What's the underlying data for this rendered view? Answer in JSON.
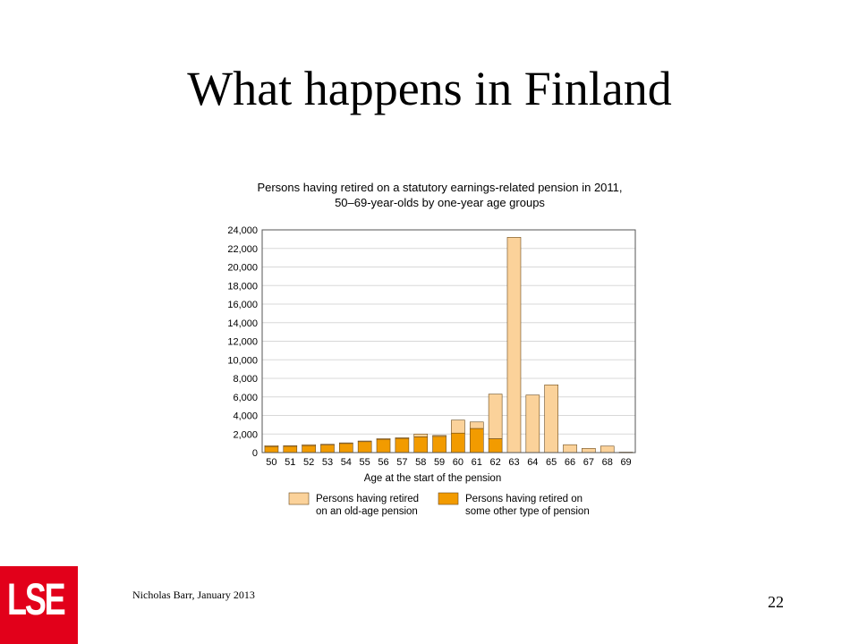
{
  "slide": {
    "title": "What happens in Finland",
    "footer": "Nicholas Barr, January 2013",
    "page_number": "22",
    "logo_text": "LSE"
  },
  "colors": {
    "old_age": "#fbd29a",
    "other": "#f29b00",
    "logo_bg": "#e2001a",
    "grid": "#d8d8d8"
  },
  "chart_data": {
    "type": "bar",
    "stacked": true,
    "title_lines": [
      "Persons having retired on a statutory earnings-related pension in 2011,",
      "50–69-year-olds by one-year age groups"
    ],
    "xlabel": "Age at the start of the pension",
    "ylabel": "",
    "ylim": [
      0,
      24000
    ],
    "yticks": [
      0,
      2000,
      4000,
      6000,
      8000,
      10000,
      12000,
      14000,
      16000,
      18000,
      20000,
      22000,
      24000
    ],
    "ytick_labels": [
      "0",
      "2,000",
      "4,000",
      "6,000",
      "8,000",
      "10,000",
      "12,000",
      "14,000",
      "16,000",
      "18,000",
      "20,000",
      "22,000",
      "24,000"
    ],
    "grid": true,
    "categories": [
      "50",
      "51",
      "52",
      "53",
      "54",
      "55",
      "56",
      "57",
      "58",
      "59",
      "60",
      "61",
      "62",
      "63",
      "64",
      "65",
      "66",
      "67",
      "68",
      "69"
    ],
    "series": [
      {
        "name": "Persons having retired on some other type of pension",
        "color": "#f29b00",
        "values": [
          650,
          700,
          750,
          850,
          1000,
          1200,
          1450,
          1550,
          1700,
          1750,
          2100,
          2600,
          1500,
          0,
          0,
          0,
          0,
          0,
          0,
          0
        ]
      },
      {
        "name": "Persons having retired on an old-age pension",
        "color": "#fbd29a",
        "values": [
          100,
          50,
          100,
          50,
          50,
          50,
          50,
          50,
          300,
          100,
          1400,
          700,
          4800,
          23200,
          6200,
          7300,
          850,
          450,
          700,
          50
        ]
      }
    ],
    "legend": {
      "placement": "bottom",
      "entries": [
        {
          "line1": "Persons having retired",
          "line2": "on an old-age pension",
          "color": "#fbd29a"
        },
        {
          "line1": "Persons having retired on",
          "line2": "some other type of pension",
          "color": "#f29b00"
        }
      ]
    }
  }
}
